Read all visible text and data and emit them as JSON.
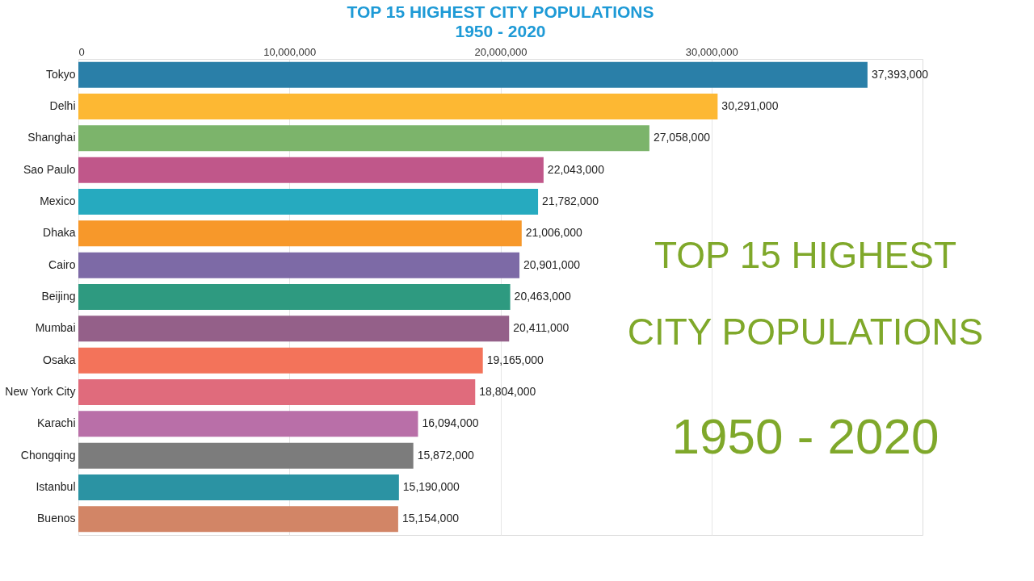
{
  "chart_data": {
    "type": "bar",
    "orientation": "horizontal",
    "title": "TOP 15 HIGHEST CITY POPULATIONS",
    "subtitle": "1950 - 2020",
    "categories": [
      "Tokyo",
      "Delhi",
      "Shanghai",
      "Sao Paulo",
      "Mexico",
      "Dhaka",
      "Cairo",
      "Beijing",
      "Mumbai",
      "Osaka",
      "New York City",
      "Karachi",
      "Chongqing",
      "Istanbul",
      "Buenos"
    ],
    "values": [
      37393000,
      30291000,
      27058000,
      22043000,
      21782000,
      21006000,
      20901000,
      20463000,
      20411000,
      19165000,
      18804000,
      16094000,
      15872000,
      15190000,
      15154000
    ],
    "colors": [
      "#2a7fa8",
      "#fdb833",
      "#7cb46b",
      "#c0578a",
      "#26aabf",
      "#f7982a",
      "#7d6aa6",
      "#2e9a80",
      "#946089",
      "#f3735a",
      "#e06b7c",
      "#b96fa8",
      "#7c7c7c",
      "#2b93a3",
      "#d28566"
    ],
    "xlim": [
      0,
      40000000
    ],
    "xticks": [
      0,
      {
        "value": 10000000,
        "label": "10,000,000"
      },
      {
        "value": 20000000,
        "label": "20,000,000"
      },
      {
        "value": 30000000,
        "label": "30,000,000"
      }
    ],
    "value_labels": [
      "37,393,000",
      "30,291,000",
      "27,058,000",
      "22,043,000",
      "21,782,000",
      "21,006,000",
      "20,901,000",
      "20,463,000",
      "20,411,000",
      "19,165,000",
      "18,804,000",
      "16,094,000",
      "15,872,000",
      "15,190,000",
      "15,154,000"
    ],
    "grid": "x",
    "annotations": [
      "TOP 15 HIGHEST",
      "CITY POPULATIONS",
      "1950 - 2020"
    ]
  }
}
